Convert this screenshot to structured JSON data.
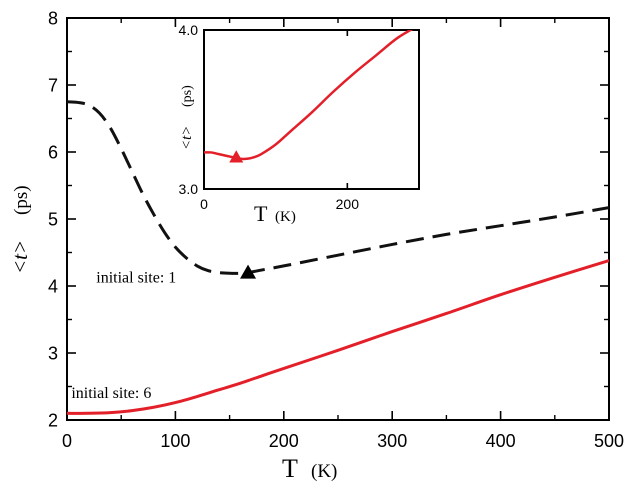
{
  "chart_data": [
    {
      "type": "line",
      "xlabel": "T",
      "xunit": "(K)",
      "ylabel_main": "<t>",
      "ylabel_unit": "(ps)",
      "xlim": [
        0,
        500
      ],
      "ylim": [
        2,
        8
      ],
      "xticks": [
        0,
        100,
        200,
        300,
        400,
        500
      ],
      "yticks": [
        2,
        3,
        4,
        5,
        6,
        7,
        8
      ],
      "grid": false,
      "series": [
        {
          "name": "initial site: 1",
          "color": "#111111",
          "style": "dashed",
          "x": [
            0,
            10,
            20,
            30,
            40,
            50,
            60,
            70,
            80,
            90,
            100,
            110,
            120,
            130,
            140,
            150,
            160,
            167,
            180,
            200,
            250,
            300,
            350,
            400,
            450,
            500
          ],
          "y": [
            6.75,
            6.74,
            6.7,
            6.58,
            6.36,
            6.05,
            5.71,
            5.37,
            5.07,
            4.8,
            4.58,
            4.42,
            4.3,
            4.23,
            4.2,
            4.19,
            4.19,
            4.2,
            4.24,
            4.3,
            4.46,
            4.62,
            4.77,
            4.9,
            5.03,
            5.17
          ]
        },
        {
          "name": "initial site: 6",
          "color": "#e3202a",
          "style": "solid",
          "x": [
            0,
            20,
            40,
            60,
            80,
            100,
            120,
            140,
            160,
            180,
            200,
            250,
            300,
            350,
            400,
            450,
            500
          ],
          "y": [
            2.1,
            2.1,
            2.11,
            2.14,
            2.19,
            2.26,
            2.35,
            2.45,
            2.55,
            2.66,
            2.77,
            3.04,
            3.32,
            3.59,
            3.87,
            4.13,
            4.38
          ]
        }
      ],
      "markers": [
        {
          "x": 167,
          "y": 4.2,
          "shape": "triangle",
          "color": "#000000"
        }
      ],
      "annotations": [
        {
          "text": "initial site: 1",
          "x": 27,
          "y": 4.05
        },
        {
          "text": "initial site: 6",
          "x": 4,
          "y": 2.33
        }
      ]
    },
    {
      "type": "line",
      "xlabel": "T",
      "xunit": "(K)",
      "ylabel_main": "<t>",
      "ylabel_unit": "(ps)",
      "xlim": [
        0,
        300
      ],
      "ylim": [
        3.0,
        4.0
      ],
      "xticks": [
        0,
        200
      ],
      "yticks": [
        3.0,
        4.0
      ],
      "ytick_labels": [
        "3.0",
        "4.0"
      ],
      "grid": false,
      "series": [
        {
          "name": "initial site: 6",
          "color": "#e3202a",
          "style": "solid",
          "x": [
            0,
            10,
            20,
            30,
            40,
            50,
            60,
            70,
            80,
            100,
            120,
            150,
            180,
            210,
            240,
            270,
            300
          ],
          "y": [
            3.23,
            3.23,
            3.22,
            3.21,
            3.2,
            3.19,
            3.19,
            3.2,
            3.22,
            3.28,
            3.36,
            3.48,
            3.61,
            3.73,
            3.84,
            3.95,
            4.03
          ]
        }
      ],
      "markers": [
        {
          "x": 45,
          "y": 3.2,
          "shape": "triangle",
          "color": "#e3202a"
        }
      ]
    }
  ]
}
